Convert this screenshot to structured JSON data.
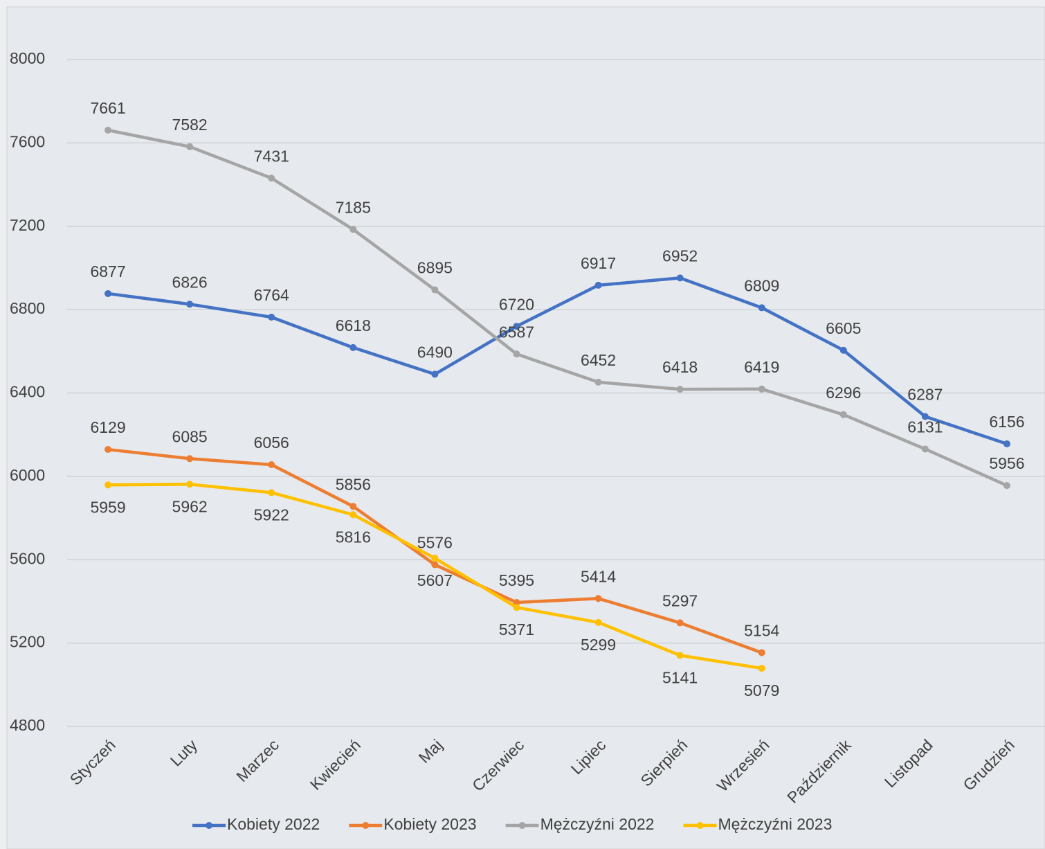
{
  "chart_data": {
    "type": "line",
    "categories": [
      "Styczeń",
      "Luty",
      "Marzec",
      "Kwiecień",
      "Maj",
      "Czerwiec",
      "Lipiec",
      "Sierpień",
      "Wrzesień",
      "Październik",
      "Listopad",
      "Grudzień"
    ],
    "series": [
      {
        "name": "Kobiety 2022",
        "color": "#4472c4",
        "values": [
          6877,
          6826,
          6764,
          6618,
          6490,
          6720,
          6917,
          6952,
          6809,
          6605,
          6287,
          6156
        ]
      },
      {
        "name": "Kobiety 2023",
        "color": "#ed7d31",
        "values": [
          6129,
          6085,
          6056,
          5856,
          5576,
          5395,
          5414,
          5297,
          5154,
          null,
          null,
          null
        ]
      },
      {
        "name": "Mężczyźni 2022",
        "color": "#a5a5a5",
        "values": [
          7661,
          7582,
          7431,
          7185,
          6895,
          6587,
          6452,
          6418,
          6419,
          6296,
          6131,
          5956
        ]
      },
      {
        "name": "Mężczyźni 2023",
        "color": "#ffc000",
        "values": [
          5959,
          5962,
          5922,
          5816,
          5607,
          5371,
          5299,
          5141,
          5079,
          null,
          null,
          null
        ]
      }
    ],
    "ylim": [
      4800,
      8000
    ],
    "yticks": [
      4800,
      5200,
      5600,
      6000,
      6400,
      6800,
      7200,
      7600,
      8000
    ],
    "grid": true,
    "legend": "bottom"
  }
}
